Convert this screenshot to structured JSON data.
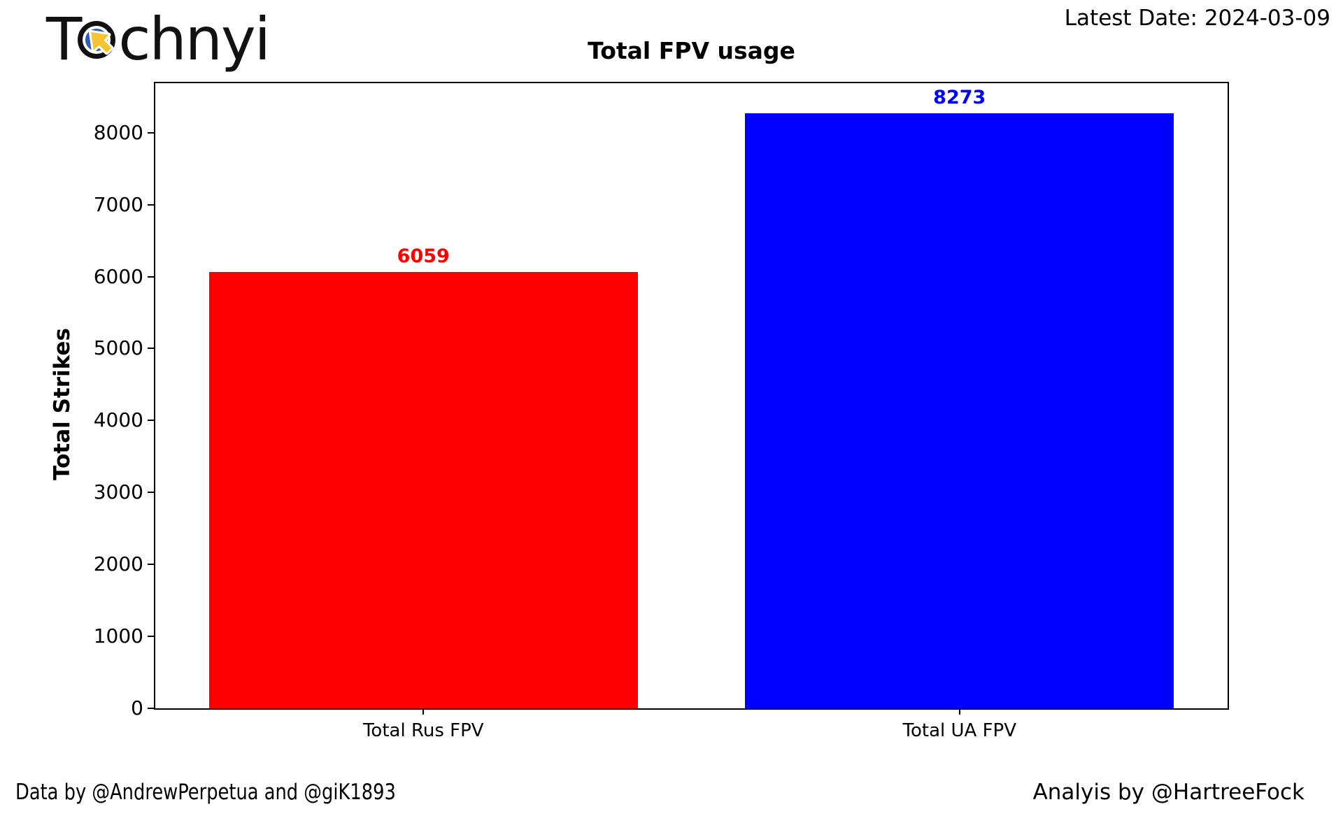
{
  "header": {
    "logo_part1": "T",
    "logo_part2": "chnyi",
    "latest_date_label": "Latest Date: 2024-03-09"
  },
  "chart_data": {
    "type": "bar",
    "title": "Total FPV usage",
    "xlabel": "",
    "ylabel": "Total Strikes",
    "categories": [
      "Total Rus FPV",
      "Total UA FPV"
    ],
    "values": [
      6059,
      8273
    ],
    "bar_colors": [
      "#ff0000",
      "#0000ff"
    ],
    "value_label_colors": [
      "#ff0000",
      "#0000ff"
    ],
    "ylim": [
      0,
      8687
    ],
    "yticks": [
      0,
      1000,
      2000,
      3000,
      4000,
      5000,
      6000,
      7000,
      8000
    ],
    "xlim": [
      -0.5,
      1.5
    ],
    "bar_width_units": 0.8,
    "grid": false,
    "legend_position": "none"
  },
  "footer": {
    "left": "Data by @AndrewPerpetua and @giK1893",
    "right": "Analyis by @HartreeFock"
  },
  "colors": {
    "rus_bar": "#ff0000",
    "ua_bar": "#0000ff",
    "logo_text": "#111111",
    "logo_ring_blue": "#2e5cb8",
    "logo_cursor_yellow": "#f4c432",
    "axis": "#000000"
  }
}
